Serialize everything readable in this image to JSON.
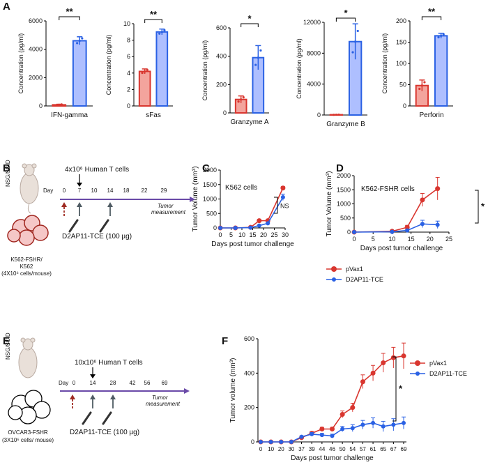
{
  "panels": {
    "A": "A",
    "B": "B",
    "C": "C",
    "D": "D",
    "E": "E",
    "F": "F"
  },
  "colors": {
    "red": "#d9362f",
    "red_fill": "#f3a49d",
    "blue": "#2a61e4",
    "blue_fill": "#aebfff",
    "arrow_red": "#9e2a21",
    "arrow_gray": "#4f5b63",
    "timeline": "#6a4aa8"
  },
  "chart_data": [
    {
      "id": "A1",
      "type": "bar",
      "panel": "A",
      "ylabel": "Concentration (pg/ml)",
      "xlabel": "IFN-gamma",
      "ylim": [
        0,
        6000
      ],
      "yticks": [
        0,
        2000,
        4000,
        6000
      ],
      "ytick_labels": [
        "0",
        "2000",
        "4000",
        "6000"
      ],
      "values": [
        80,
        4600
      ],
      "errors": [
        40,
        280
      ],
      "significance": "**"
    },
    {
      "id": "A2",
      "type": "bar",
      "panel": "A",
      "ylabel": "Concentration (pg/ml)",
      "xlabel": "sFas",
      "ylim": [
        0,
        10
      ],
      "yticks": [
        0,
        2,
        4,
        6,
        8,
        10
      ],
      "ytick_labels": [
        "0",
        "2",
        "4",
        "6",
        "8",
        "10"
      ],
      "values": [
        4.2,
        9.0
      ],
      "errors": [
        0.3,
        0.35
      ],
      "significance": "**"
    },
    {
      "id": "A3",
      "type": "bar",
      "panel": "A",
      "ylabel": "Concentration (pg/ml)",
      "xlabel": "Granzyme A",
      "ylim": [
        0,
        600
      ],
      "yticks": [
        0,
        200,
        400,
        600
      ],
      "ytick_labels": [
        "0",
        "200",
        "400",
        "600"
      ],
      "values": [
        95,
        390
      ],
      "errors": [
        25,
        85
      ],
      "significance": "*"
    },
    {
      "id": "A4",
      "type": "bar",
      "panel": "A",
      "ylabel": "Concentration (pg/ml)",
      "xlabel": "Granzyme B",
      "ylim": [
        0,
        12000
      ],
      "yticks": [
        0,
        4000,
        8000,
        12000
      ],
      "ytick_labels": [
        "0",
        "4000",
        "8000",
        "12000"
      ],
      "values": [
        40,
        9500
      ],
      "errors": [
        20,
        2300
      ],
      "significance": "*"
    },
    {
      "id": "A5",
      "type": "bar",
      "panel": "A",
      "ylabel": "Concentration (pg/ml)",
      "xlabel": "Perforin",
      "ylim": [
        0,
        200
      ],
      "yticks": [
        0,
        50,
        100,
        150,
        200
      ],
      "ytick_labels": [
        "0",
        "50",
        "100",
        "150",
        "200"
      ],
      "values": [
        48,
        165
      ],
      "errors": [
        13,
        6
      ],
      "significance": "**"
    },
    {
      "id": "C",
      "type": "line",
      "panel": "C",
      "title": "K562 cells",
      "xlabel": "Days post tumor challenge",
      "ylabel": "Tumor Volume (mm³)",
      "xlim": [
        0,
        30
      ],
      "ylim": [
        0,
        2000
      ],
      "xticks": [
        0,
        5,
        10,
        15,
        20,
        25,
        30
      ],
      "yticks": [
        0,
        500,
        1000,
        1500,
        2000
      ],
      "series": [
        {
          "name": "pVax1",
          "x": [
            0,
            7,
            14,
            18,
            22,
            29
          ],
          "y": [
            0,
            0,
            20,
            250,
            250,
            1380
          ],
          "err": [
            0,
            0,
            5,
            15,
            15,
            50
          ]
        },
        {
          "name": "D2AP11-TCE",
          "x": [
            0,
            7,
            14,
            18,
            22,
            29
          ],
          "y": [
            0,
            0,
            10,
            80,
            160,
            1060
          ],
          "err": [
            0,
            0,
            5,
            15,
            15,
            110
          ]
        }
      ],
      "annotation": "NS"
    },
    {
      "id": "D",
      "type": "line",
      "panel": "D",
      "title": "K562-FSHR cells",
      "xlabel": "Days post tumor challenge",
      "ylabel": "Tumor Volume (mm³)",
      "xlim": [
        0,
        25
      ],
      "ylim": [
        0,
        2000
      ],
      "xticks": [
        0,
        5,
        10,
        15,
        20,
        25
      ],
      "yticks": [
        0,
        500,
        1000,
        1500,
        2000
      ],
      "series": [
        {
          "name": "pVax1",
          "x": [
            0,
            10,
            14,
            18,
            22
          ],
          "y": [
            0,
            30,
            170,
            1140,
            1540
          ],
          "err": [
            0,
            15,
            70,
            230,
            400
          ]
        },
        {
          "name": "D2AP11-TCE",
          "x": [
            0,
            10,
            14,
            18,
            22
          ],
          "y": [
            0,
            10,
            60,
            290,
            260
          ],
          "err": [
            0,
            5,
            30,
            130,
            130
          ]
        }
      ],
      "annotation": "*",
      "legend": [
        "pVax1",
        "D2AP11-TCE"
      ]
    },
    {
      "id": "F",
      "type": "line",
      "panel": "F",
      "xlabel": "Days post tumor challenge",
      "ylabel": "Tumor volume (mm³)",
      "x_categories": [
        "0",
        "10",
        "20",
        "30",
        "37",
        "39",
        "44",
        "46",
        "50",
        "54",
        "57",
        "61",
        "65",
        "67",
        "69"
      ],
      "ylim": [
        0,
        600
      ],
      "yticks": [
        0,
        200,
        400,
        600
      ],
      "series": [
        {
          "name": "pVax1",
          "y": [
            0,
            0,
            0,
            0,
            25,
            50,
            75,
            75,
            160,
            200,
            350,
            400,
            460,
            490,
            500
          ],
          "err": [
            0,
            0,
            0,
            0,
            5,
            10,
            10,
            10,
            20,
            25,
            40,
            45,
            55,
            60,
            75
          ]
        },
        {
          "name": "D2AP11-TCE",
          "y": [
            0,
            0,
            0,
            0,
            30,
            45,
            40,
            35,
            75,
            80,
            100,
            110,
            90,
            100,
            110
          ],
          "err": [
            0,
            0,
            0,
            0,
            5,
            10,
            10,
            10,
            15,
            20,
            25,
            30,
            30,
            35,
            35
          ]
        }
      ],
      "annotation": "*",
      "legend": [
        "pVax1",
        "D2AP11-TCE"
      ]
    }
  ],
  "schemes": {
    "B": {
      "mouse_strain": "NSG/SCID",
      "day_label": "Day",
      "days": [
        "0",
        "7",
        "10",
        "14",
        "18",
        "22",
        "29"
      ],
      "tcell_label": "4x10⁶ Human T cells",
      "tumor_measurement_1": "Tumor",
      "tumor_measurement_2": "measurement",
      "injection_label": "D2AP11-TCE (100 µg)",
      "cells_line1": "K562-FSHR/",
      "cells_line2": "K562",
      "cells_line3": "(4X10⁶ cells/mouse)"
    },
    "E": {
      "mouse_strain": "NSG/SCID",
      "day_label": "Day",
      "days": [
        "0",
        "14",
        "28",
        "42",
        "56",
        "69"
      ],
      "tcell_label": "10x10⁶ Human T cells",
      "tumor_measurement_1": "Tumor",
      "tumor_measurement_2": "measurement",
      "injection_label": "D2AP11-TCE (100 µg)",
      "cells_line1": "OVCAR3-FSHR",
      "cells_line2": "(3X10⁶ cells/ mouse)"
    }
  }
}
